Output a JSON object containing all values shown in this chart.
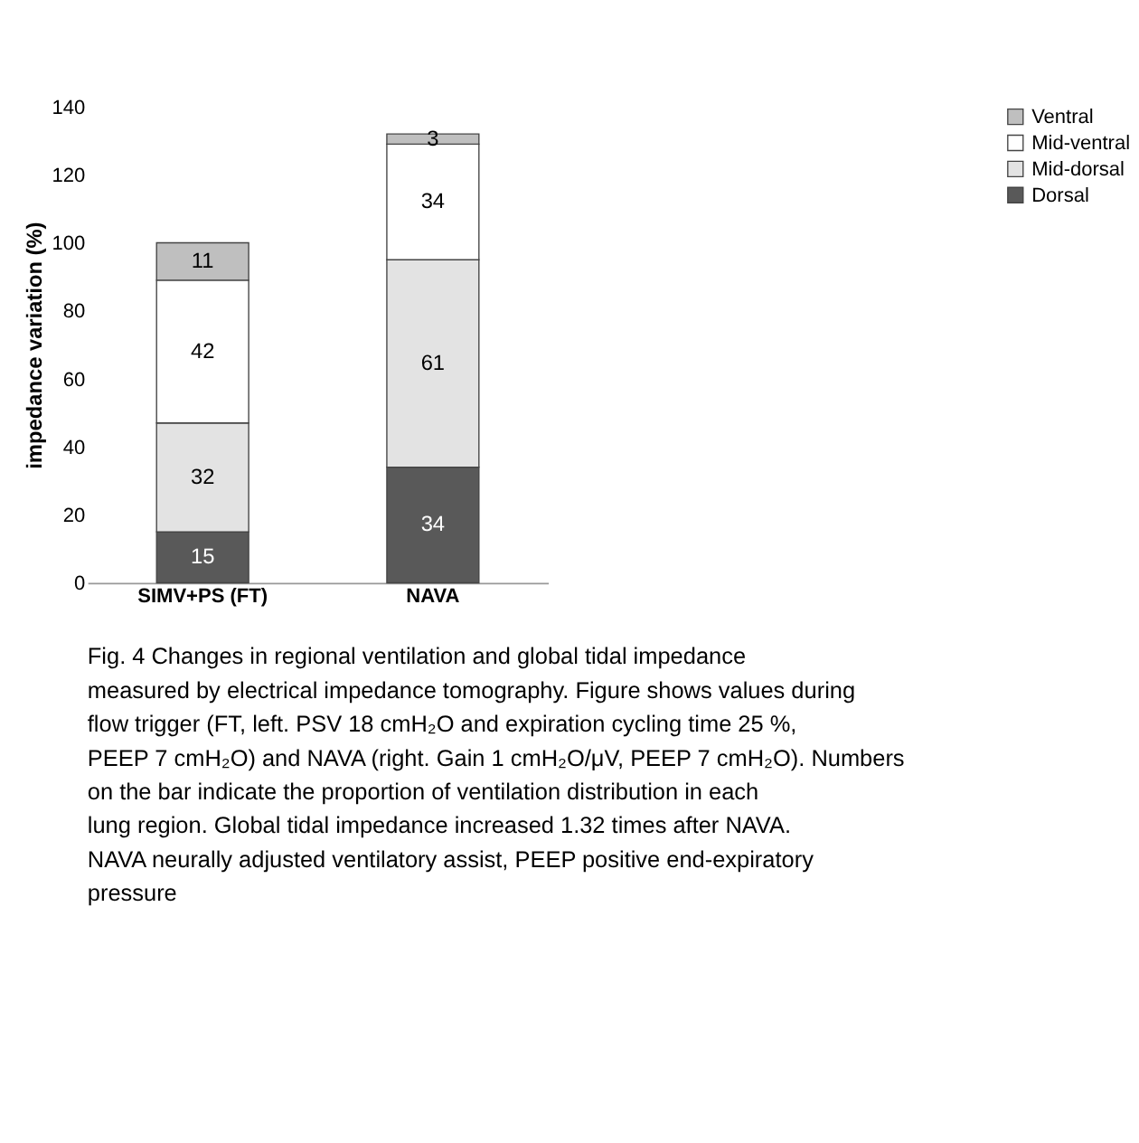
{
  "chart_data": {
    "type": "bar",
    "stacked": true,
    "categories": [
      "SIMV+PS (FT)",
      "NAVA"
    ],
    "series": [
      {
        "name": "Dorsal",
        "color": "#595959",
        "values": [
          15,
          34
        ]
      },
      {
        "name": "Mid-dorsal",
        "color": "#e3e3e3",
        "values": [
          32,
          61
        ]
      },
      {
        "name": "Mid-ventral",
        "color": "#ffffff",
        "values": [
          42,
          34
        ]
      },
      {
        "name": "Ventral",
        "color": "#bfbfbf",
        "values": [
          11,
          3
        ]
      }
    ],
    "ylabel": "impedance variation (%)",
    "ylim": [
      0,
      140
    ],
    "yticks": [
      0,
      20,
      40,
      60,
      80,
      100,
      120,
      140
    ],
    "grid": false,
    "legend": "right",
    "data_labels": true,
    "annotations": [
      "Fig. 4 Changes in regional ventilation and global tidal impedance measured by electrical impedance tomography. Figure shows values during flow trigger (FT, left. PSV 18 cmH₂O and expiration cycling time 25 %, PEEP 7 cmH₂O) and NAVA (right. Gain 1 cmH₂O/μV, PEEP 7 cmH₂O). Numbers on the bar indicate the proportion of ventilation distribution in each lung region. Global tidal impedance increased 1.32 times after NAVA. NAVA neurally adjusted ventilatory assist, PEEP positive end-expiratory pressure"
    ]
  }
}
